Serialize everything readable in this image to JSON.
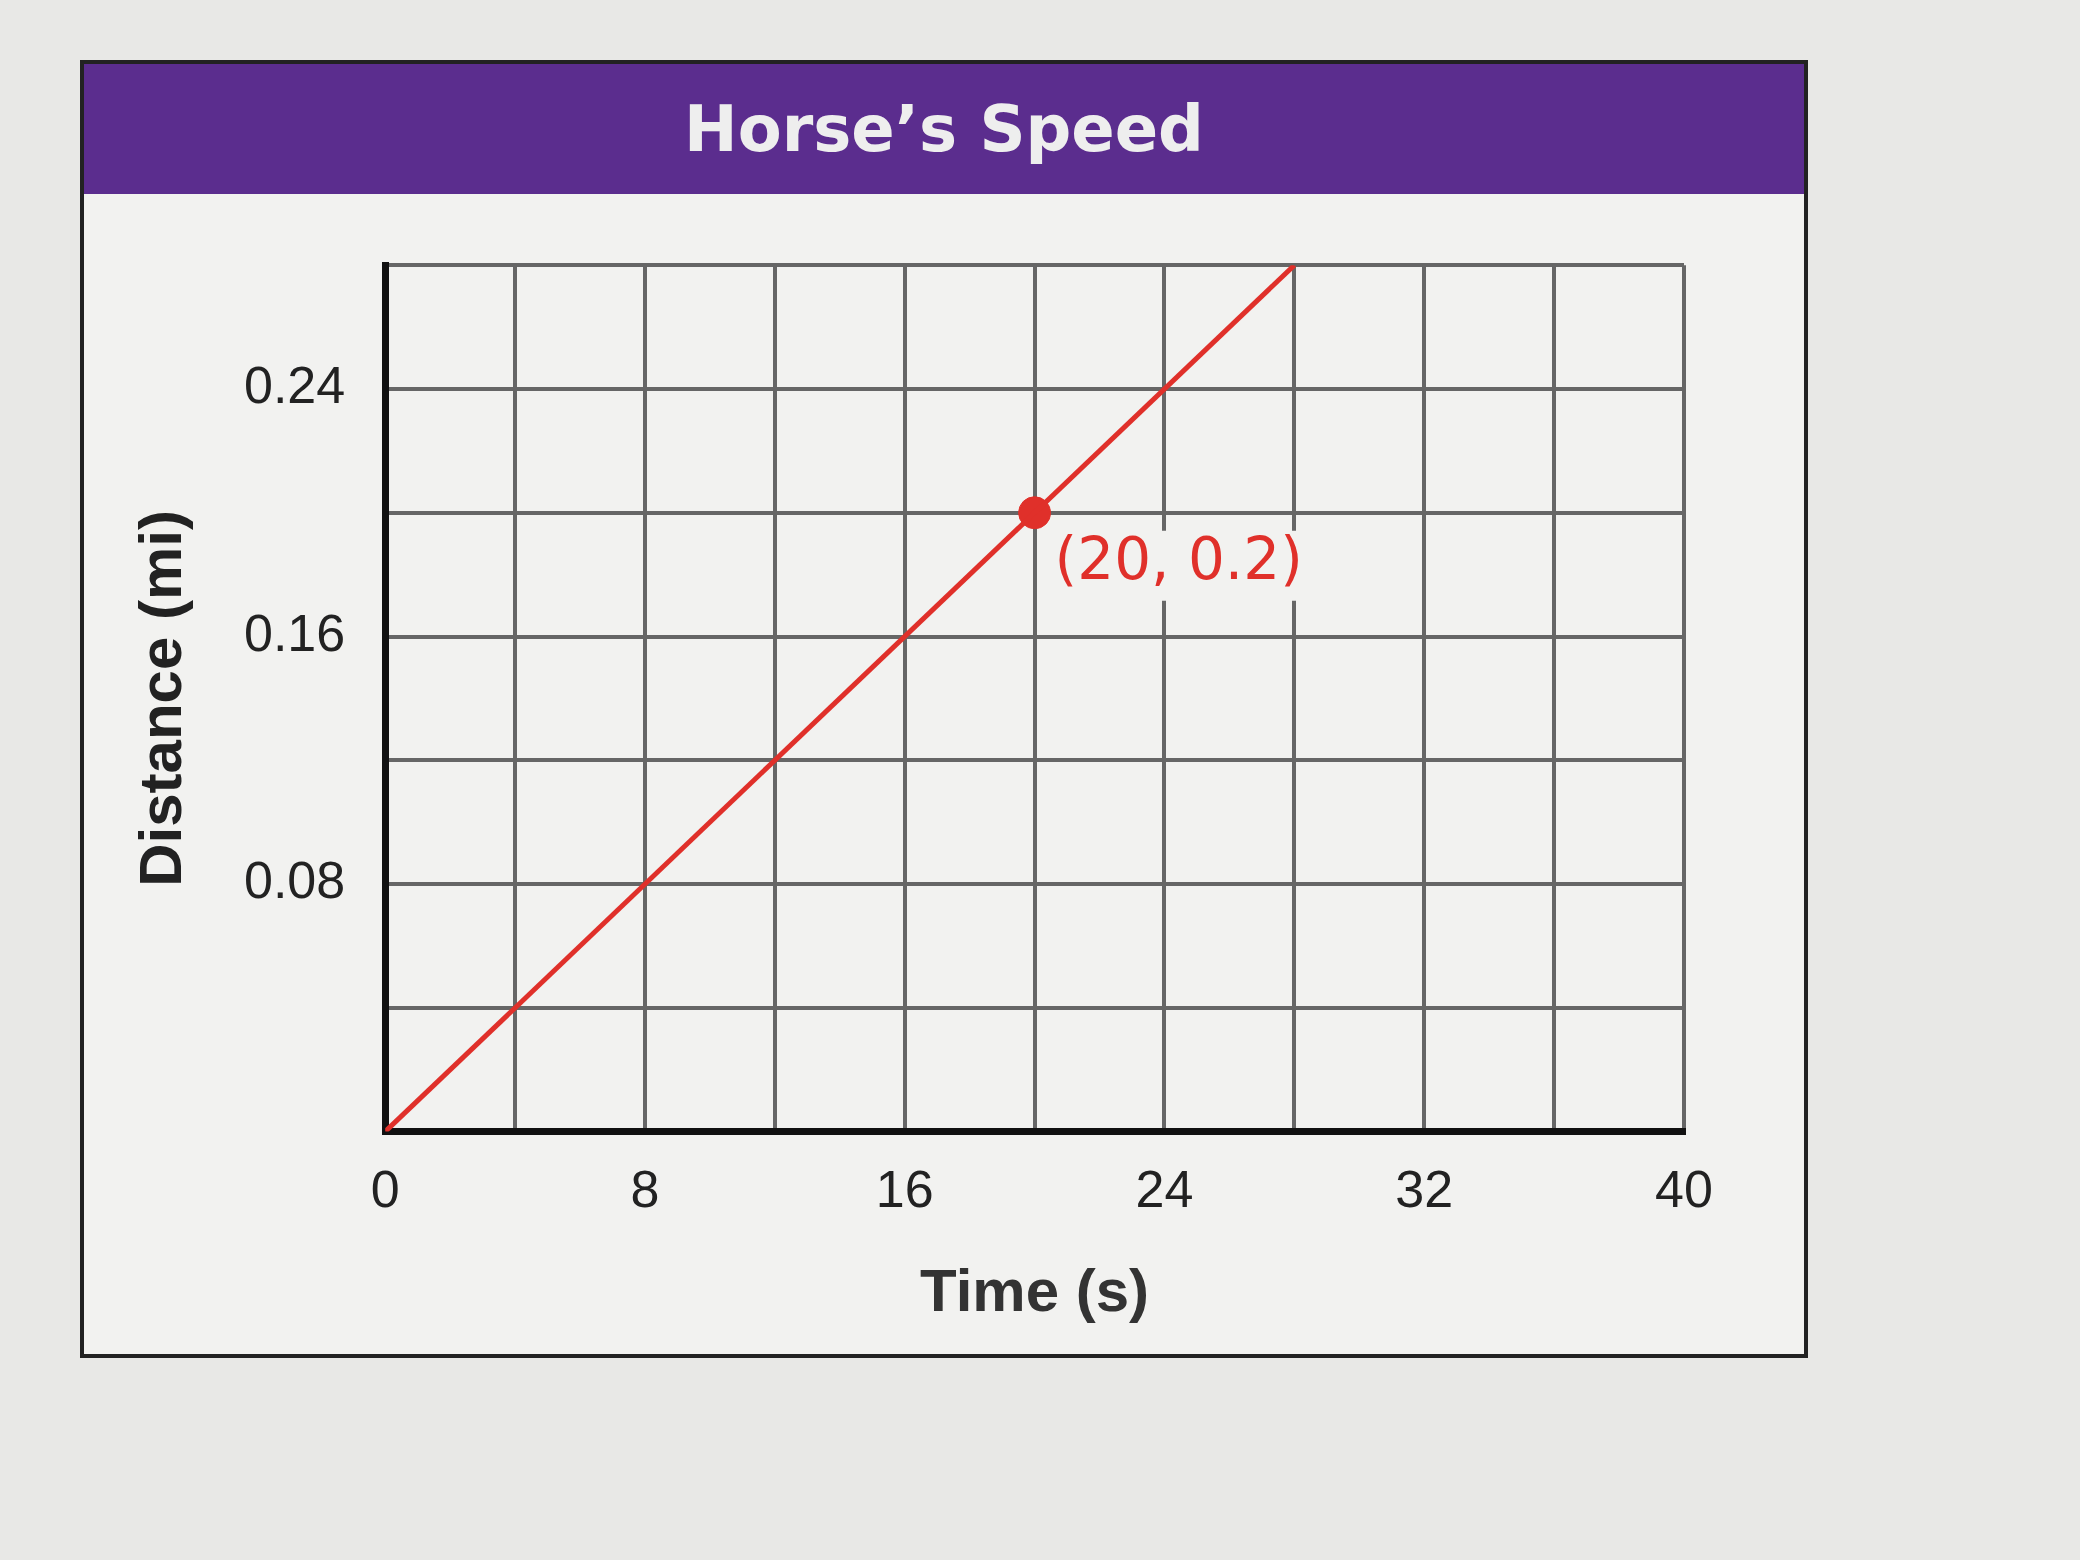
{
  "chart_data": {
    "type": "line",
    "title": "Horse’s Speed",
    "xlabel": "Time (s)",
    "ylabel": "Distance (mi)",
    "series": [
      {
        "color": "#e0302a",
        "x": [
          0,
          28
        ],
        "values": [
          0,
          0.28
        ],
        "marker": "none"
      },
      {
        "type": "scatter",
        "color": "#e0302a",
        "x": [
          20
        ],
        "values": [
          0.2
        ],
        "marker": "circle"
      }
    ],
    "annotations": [
      {
        "text": "(20, 0.2)",
        "x": 20,
        "y": 0.2
      }
    ],
    "xlim": [
      0,
      40
    ],
    "ylim": [
      0,
      0.28
    ],
    "xticks": [
      0,
      {
        "value": 4,
        "label": null
      },
      8,
      {
        "value": 12,
        "label": null
      },
      16,
      {
        "value": 20,
        "label": null
      },
      24,
      {
        "value": 28,
        "label": null
      },
      32,
      {
        "value": 36,
        "label": null
      },
      40
    ],
    "yticks": [
      {
        "value": 0,
        "label": null
      },
      {
        "value": 0.04,
        "label": null
      },
      0.08,
      {
        "value": 0.12,
        "label": null
      },
      0.16,
      {
        "value": 0.2,
        "label": null
      },
      0.24,
      {
        "value": 0.28,
        "label": null
      }
    ],
    "grid": true,
    "legend": false
  }
}
